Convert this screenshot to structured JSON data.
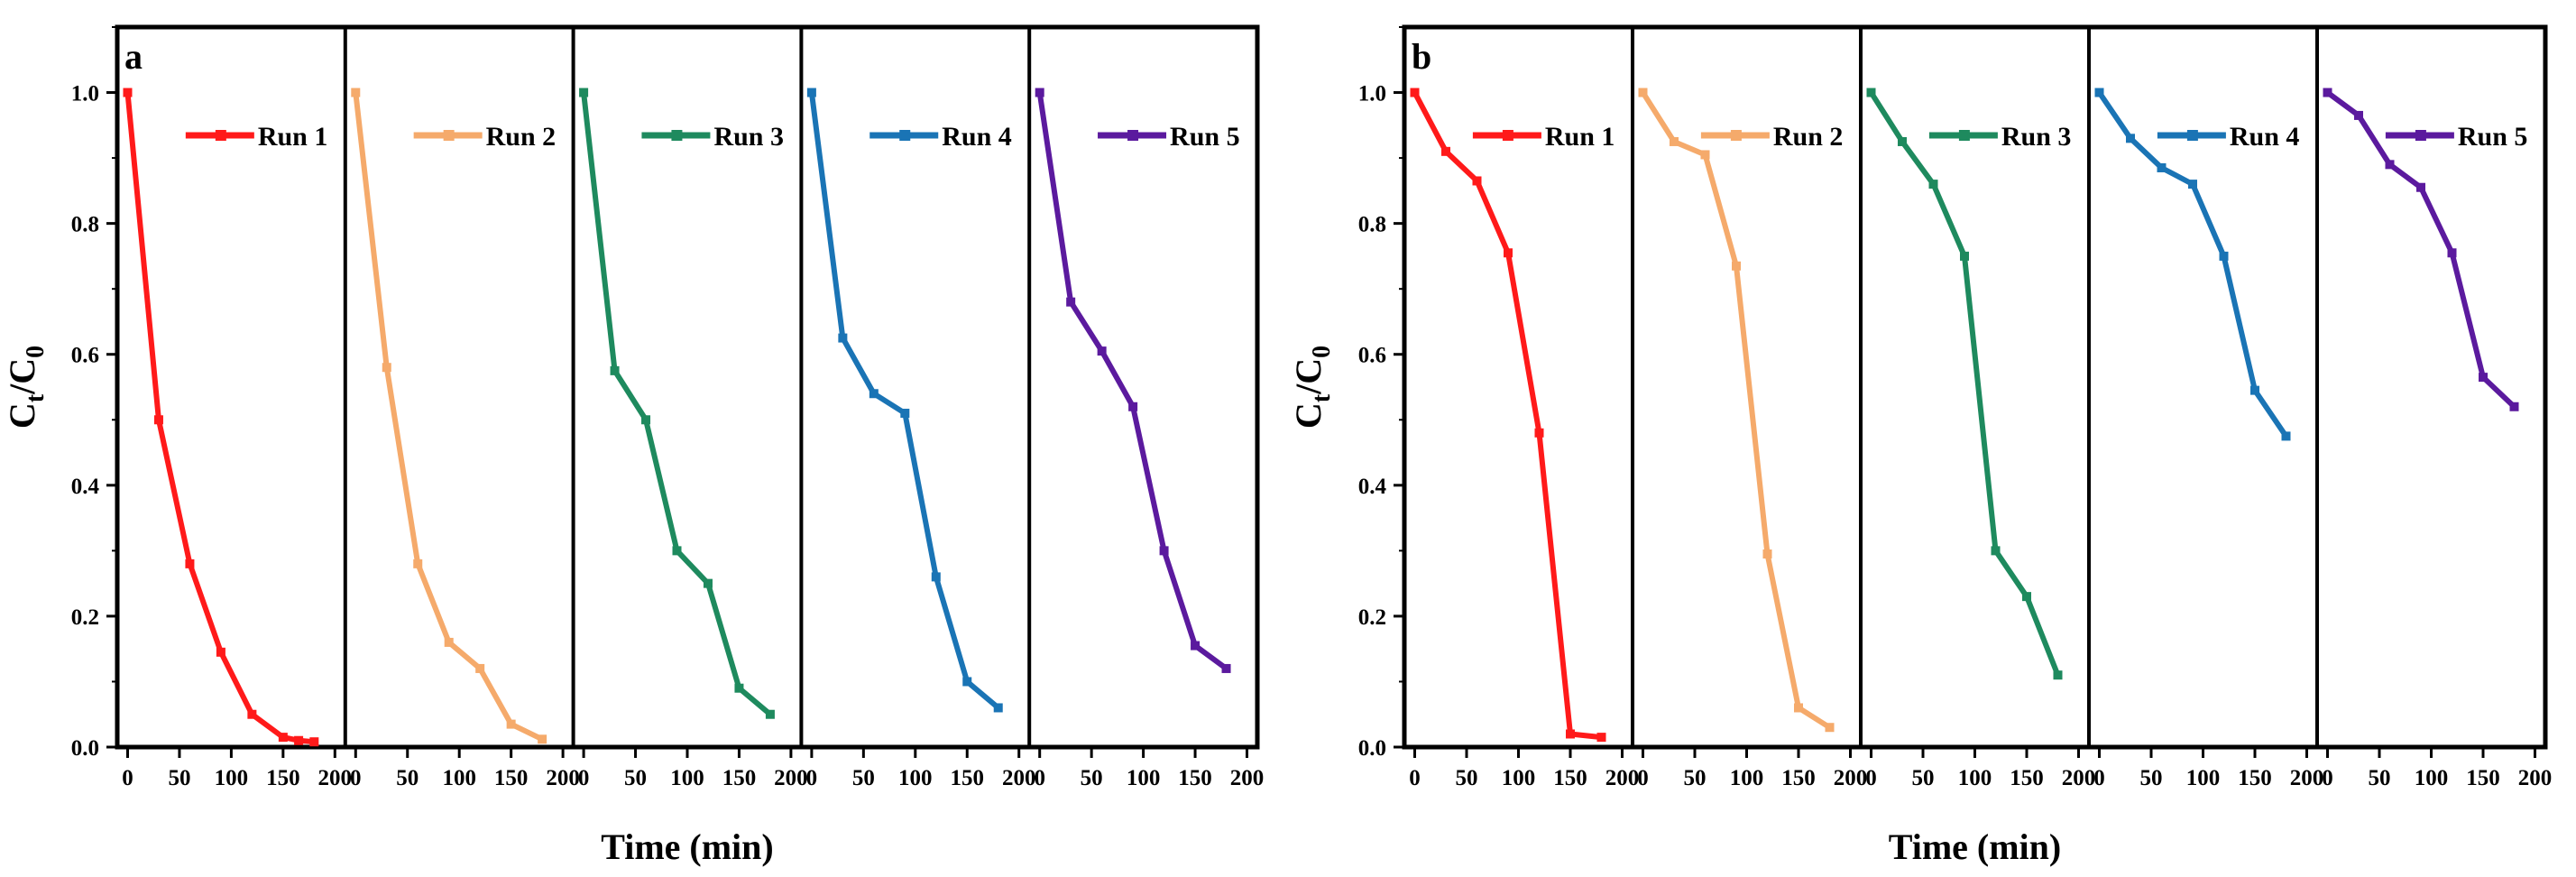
{
  "chart_data": [
    {
      "type": "line",
      "panel_label": "a",
      "xlabel": "Time (min)",
      "ylabel_main": "C",
      "ylabel_sub1": "t",
      "ylabel_slash": "/C",
      "ylabel_sub2": "0",
      "ylim": [
        0,
        1.1
      ],
      "yticks": [
        "0.0",
        "0.2",
        "0.4",
        "0.6",
        "0.8",
        "1.0"
      ],
      "ytick_values": [
        0,
        0.2,
        0.4,
        0.6,
        0.8,
        1.0
      ],
      "xlim": [
        -10,
        210
      ],
      "xticks": [
        "0",
        "50",
        "100",
        "150",
        "200"
      ],
      "xtick_values": [
        0,
        50,
        100,
        150,
        200
      ],
      "x": [
        0,
        30,
        60,
        90,
        120,
        150,
        165,
        180
      ],
      "series": [
        {
          "name": "Run 1",
          "color": "#ff1a1a",
          "values": [
            1.0,
            0.5,
            0.28,
            0.145,
            0.05,
            0.015,
            0.01,
            0.008
          ]
        },
        {
          "name": "Run 2",
          "color": "#f5aa6b",
          "values": [
            1.0,
            0.58,
            0.28,
            0.16,
            0.12,
            0.035,
            null,
            0.012
          ]
        },
        {
          "name": "Run 3",
          "color": "#1e8a5e",
          "values": [
            1.0,
            0.575,
            0.5,
            0.3,
            0.25,
            0.09,
            null,
            0.05
          ]
        },
        {
          "name": "Run 4",
          "color": "#1a74b5",
          "values": [
            1.0,
            0.625,
            0.54,
            0.51,
            0.26,
            0.1,
            null,
            0.06
          ]
        },
        {
          "name": "Run 5",
          "color": "#5b1a9e",
          "values": [
            1.0,
            0.68,
            0.605,
            0.52,
            0.3,
            0.155,
            null,
            0.12
          ]
        }
      ]
    },
    {
      "type": "line",
      "panel_label": "b",
      "xlabel": "Time (min)",
      "ylabel_main": "C",
      "ylabel_sub1": "t",
      "ylabel_slash": "/C",
      "ylabel_sub2": "0",
      "ylim": [
        0,
        1.1
      ],
      "yticks": [
        "0.0",
        "0.2",
        "0.4",
        "0.6",
        "0.8",
        "1.0"
      ],
      "ytick_values": [
        0,
        0.2,
        0.4,
        0.6,
        0.8,
        1.0
      ],
      "xlim": [
        -10,
        210
      ],
      "xticks": [
        "0",
        "50",
        "100",
        "150",
        "200"
      ],
      "xtick_values": [
        0,
        50,
        100,
        150,
        200
      ],
      "x": [
        0,
        30,
        60,
        90,
        120,
        150,
        180
      ],
      "series": [
        {
          "name": "Run 1",
          "color": "#ff1a1a",
          "values": [
            1.0,
            0.91,
            0.865,
            0.755,
            0.48,
            0.02,
            0.015
          ]
        },
        {
          "name": "Run 2",
          "color": "#f5aa6b",
          "values": [
            1.0,
            0.925,
            0.905,
            0.735,
            0.295,
            0.06,
            0.03
          ]
        },
        {
          "name": "Run 3",
          "color": "#1e8a5e",
          "values": [
            1.0,
            0.925,
            0.86,
            0.75,
            0.3,
            0.23,
            0.11
          ]
        },
        {
          "name": "Run 4",
          "color": "#1a74b5",
          "values": [
            1.0,
            0.93,
            0.885,
            0.86,
            0.75,
            0.545,
            0.475
          ]
        },
        {
          "name": "Run 5",
          "color": "#5b1a9e",
          "values": [
            1.0,
            0.965,
            0.89,
            0.855,
            0.755,
            0.565,
            0.52
          ]
        }
      ]
    }
  ]
}
